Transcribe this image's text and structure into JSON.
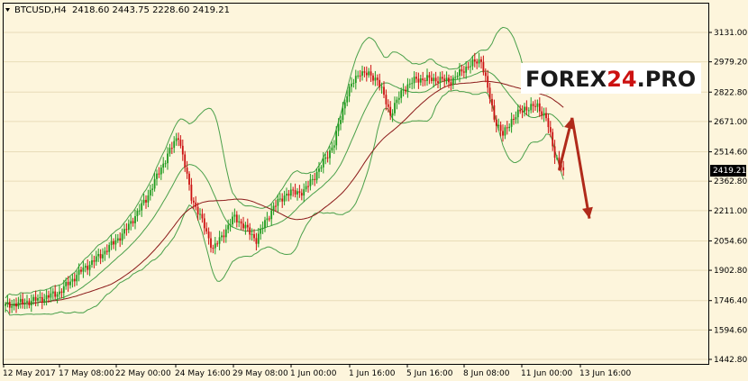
{
  "header": {
    "symbol": "BTCUSD,H4",
    "ohlc": "2418.60 2443.75 2228.60 2419.21"
  },
  "watermark": {
    "part1": "FOREX",
    "part2": "24",
    "part3": ".PRO",
    "color_main": "#1a1a1a",
    "color_accent": "#cc1111"
  },
  "colors": {
    "background": "#fdf5dc",
    "bull": "#1e9a1e",
    "bear": "#cc1111",
    "bands": "#4aa04a",
    "ma": "#8b1a1a",
    "arrow": "#b02a1a"
  },
  "chart_data": {
    "type": "candlestick",
    "title": "BTCUSD,H4",
    "ylim": [
      1442.8,
      3200
    ],
    "y_ticks": [
      "3131.00",
      "2979.20",
      "2822.80",
      "2671.00",
      "2514.60",
      "2362.80",
      "2211.00",
      "2054.60",
      "1902.80",
      "1746.40",
      "1594.60",
      "1442.80"
    ],
    "x_ticks": [
      "12 May 2017",
      "17 May 08:00",
      "22 May 00:00",
      "24 May 16:00",
      "29 May 08:00",
      "1 Jun 00:00",
      "1 Jun 16:00",
      "5 Jun 16:00",
      "8 Jun 08:00",
      "11 Jun 00:00",
      "13 Jun 16:00"
    ],
    "last_price": "2419.21",
    "anchors": [
      [
        0,
        1720
      ],
      [
        10,
        1740
      ],
      [
        18,
        1760
      ],
      [
        25,
        1790
      ],
      [
        35,
        1900
      ],
      [
        45,
        1990
      ],
      [
        55,
        2100
      ],
      [
        65,
        2270
      ],
      [
        75,
        2500
      ],
      [
        80,
        2600
      ],
      [
        86,
        2280
      ],
      [
        92,
        2130
      ],
      [
        96,
        2010
      ],
      [
        100,
        2080
      ],
      [
        106,
        2180
      ],
      [
        112,
        2110
      ],
      [
        116,
        2060
      ],
      [
        120,
        2150
      ],
      [
        124,
        2230
      ],
      [
        130,
        2300
      ],
      [
        138,
        2310
      ],
      [
        146,
        2440
      ],
      [
        152,
        2560
      ],
      [
        158,
        2820
      ],
      [
        164,
        2930
      ],
      [
        172,
        2890
      ],
      [
        178,
        2710
      ],
      [
        184,
        2840
      ],
      [
        190,
        2890
      ],
      [
        198,
        2890
      ],
      [
        206,
        2880
      ],
      [
        214,
        2960
      ],
      [
        220,
        2990
      ],
      [
        226,
        2690
      ],
      [
        230,
        2600
      ],
      [
        234,
        2680
      ],
      [
        240,
        2740
      ],
      [
        246,
        2750
      ],
      [
        250,
        2690
      ],
      [
        254,
        2500
      ],
      [
        258,
        2419
      ]
    ],
    "forecast_arrows": [
      {
        "from": [
          256,
          2420
        ],
        "to": [
          262,
          2690
        ]
      },
      {
        "from": [
          262,
          2690
        ],
        "to": [
          270,
          2170
        ]
      }
    ]
  }
}
